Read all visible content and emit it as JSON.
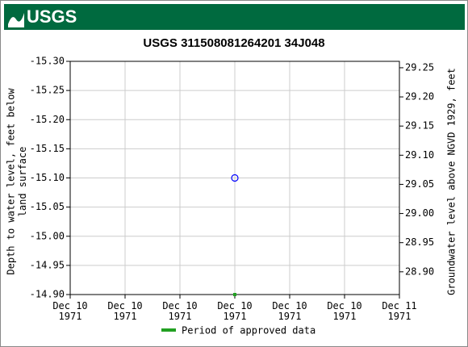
{
  "logo_text": "USGS",
  "chart_data": {
    "type": "scatter",
    "title": "USGS 311508081264201 34J048",
    "y_label": "Depth to water level, feet below land surface",
    "y2_label": "Groundwater level above NGVD 1929, feet",
    "xlim": [
      "1971-12-10T00:00:00Z",
      "1971-12-11T00:00:00Z"
    ],
    "xticks": [
      {
        "value": "1971-12-10T00:00:00Z",
        "label": "Dec 10\n1971"
      },
      {
        "value": "1971-12-10T04:00:00Z",
        "label": "Dec 10\n1971"
      },
      {
        "value": "1971-12-10T08:00:00Z",
        "label": "Dec 10\n1971"
      },
      {
        "value": "1971-12-10T12:00:00Z",
        "label": "Dec 10\n1971"
      },
      {
        "value": "1971-12-10T16:00:00Z",
        "label": "Dec 10\n1971"
      },
      {
        "value": "1971-12-10T20:00:00Z",
        "label": "Dec 10\n1971"
      },
      {
        "value": "1971-12-11T00:00:00Z",
        "label": "Dec 11\n1971"
      }
    ],
    "ylim": [
      -15.3,
      -14.9
    ],
    "y_inverted": true,
    "yticks": [
      {
        "value": -15.3,
        "label": "-15.30"
      },
      -15.25,
      {
        "value": -15.2,
        "label": "-15.20"
      },
      -15.15,
      {
        "value": -15.1,
        "label": "-15.10"
      },
      -15.05,
      {
        "value": -15.0,
        "label": "-15.00"
      },
      -14.95,
      {
        "value": -14.9,
        "label": "-14.90"
      }
    ],
    "y2lim": [
      28.861,
      29.261
    ],
    "y2ticks": [
      29.25,
      {
        "value": 29.2,
        "label": "29.20"
      },
      29.15,
      {
        "value": 29.1,
        "label": "29.10"
      },
      29.05,
      {
        "value": 29.0,
        "label": "29.00"
      },
      28.95,
      {
        "value": 28.9,
        "label": "28.90"
      }
    ],
    "grid": true,
    "series": [
      {
        "color": "#0000ff",
        "x": [
          "1971-12-10T12:00:00Z"
        ],
        "values": [
          -15.1
        ]
      }
    ],
    "periods": [
      {
        "name": "Period of approved data",
        "color": "#22a022",
        "x": [
          "1971-12-10T12:00:00Z"
        ]
      }
    ]
  }
}
